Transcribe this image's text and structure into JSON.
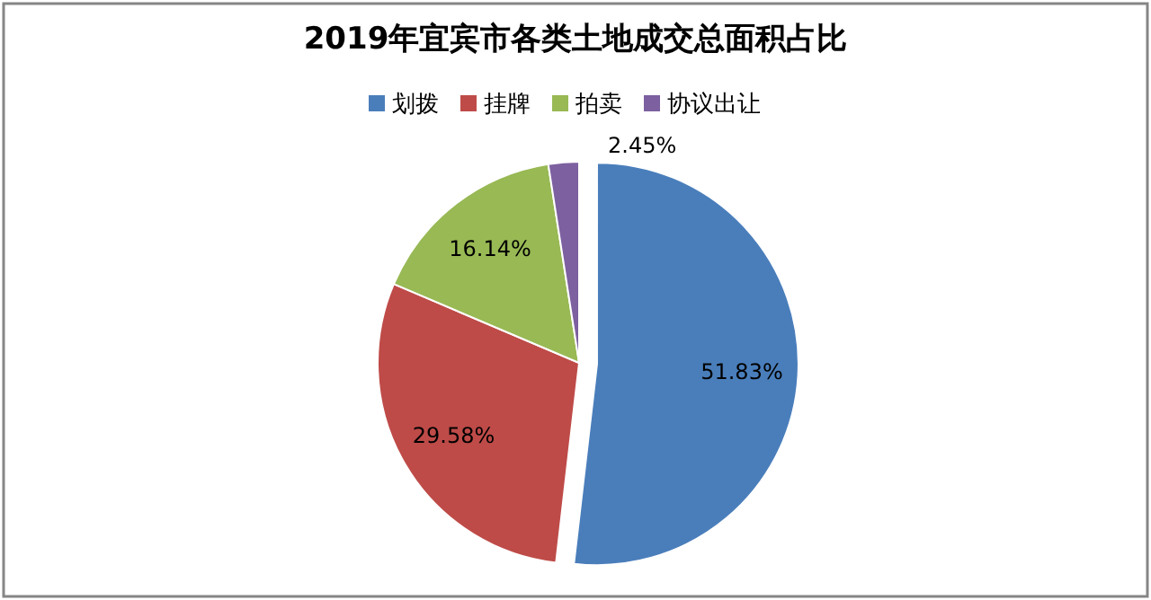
{
  "chart_data": {
    "type": "pie",
    "title": "2019年宜宾市各类土地成交总面积占比",
    "categories": [
      "划拨",
      "挂牌",
      "拍卖",
      "协议出让"
    ],
    "values": [
      51.83,
      29.58,
      16.14,
      2.45
    ],
    "colors": [
      "#4a7ebb",
      "#be4b48",
      "#98b954",
      "#7d60a0"
    ],
    "value_labels": [
      "51.83%",
      "29.58%",
      "16.14%",
      "2.45%"
    ],
    "legend": "top"
  }
}
